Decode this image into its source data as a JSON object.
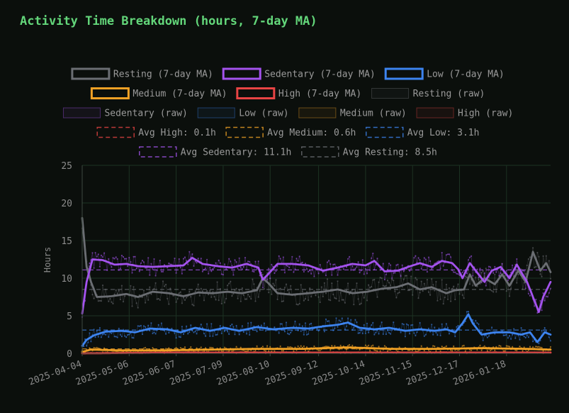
{
  "chart_data": {
    "type": "line",
    "title": "Activity Time Breakdown (hours, 7-day MA)",
    "xlabel": "",
    "ylabel": "Hours",
    "ylim": [
      0,
      25
    ],
    "yticks": [
      0,
      5,
      10,
      15,
      20,
      25
    ],
    "x_start": "2025-04-04",
    "x_end": "2026-02-17",
    "xticks": [
      "2025-04-04",
      "2025-05-06",
      "2025-06-07",
      "2025-07-09",
      "2025-08-10",
      "2025-09-12",
      "2025-10-14",
      "2025-11-15",
      "2025-12-17",
      "2026-01-18"
    ],
    "grid": true,
    "legend_position": "top-center",
    "series": [
      {
        "name": "Resting (7-day MA)",
        "color": "#6b6e73",
        "style": "solid",
        "points": [
          [
            "2025-04-04",
            18.0
          ],
          [
            "2025-04-07",
            11.5
          ],
          [
            "2025-04-10",
            9.5
          ],
          [
            "2025-04-14",
            7.5
          ],
          [
            "2025-04-24",
            7.6
          ],
          [
            "2025-05-04",
            7.9
          ],
          [
            "2025-05-12",
            7.5
          ],
          [
            "2025-05-22",
            8.2
          ],
          [
            "2025-06-02",
            8.0
          ],
          [
            "2025-06-12",
            7.6
          ],
          [
            "2025-06-22",
            8.1
          ],
          [
            "2025-07-02",
            8.0
          ],
          [
            "2025-07-12",
            8.2
          ],
          [
            "2025-07-22",
            8.0
          ],
          [
            "2025-08-01",
            8.4
          ],
          [
            "2025-08-05",
            10.0
          ],
          [
            "2025-08-09",
            9.3
          ],
          [
            "2025-08-15",
            8.0
          ],
          [
            "2025-08-25",
            7.8
          ],
          [
            "2025-09-05",
            8.0
          ],
          [
            "2025-09-15",
            8.2
          ],
          [
            "2025-09-25",
            8.5
          ],
          [
            "2025-10-05",
            8.0
          ],
          [
            "2025-10-15",
            8.2
          ],
          [
            "2025-10-25",
            8.6
          ],
          [
            "2025-11-04",
            8.8
          ],
          [
            "2025-11-12",
            9.3
          ],
          [
            "2025-11-20",
            8.5
          ],
          [
            "2025-11-28",
            8.8
          ],
          [
            "2025-12-08",
            8.0
          ],
          [
            "2025-12-14",
            8.4
          ],
          [
            "2025-12-20",
            8.5
          ],
          [
            "2025-12-24",
            10.5
          ],
          [
            "2025-12-28",
            9.0
          ],
          [
            "2026-01-03",
            10.0
          ],
          [
            "2026-01-10",
            9.2
          ],
          [
            "2026-01-15",
            10.5
          ],
          [
            "2026-01-20",
            9.0
          ],
          [
            "2026-01-26",
            11.0
          ],
          [
            "2026-01-31",
            9.5
          ],
          [
            "2026-02-05",
            13.5
          ],
          [
            "2026-02-10",
            11.0
          ],
          [
            "2026-02-14",
            12.0
          ],
          [
            "2026-02-17",
            10.8
          ]
        ]
      },
      {
        "name": "Sedentary (7-day MA)",
        "color": "#a453ee",
        "style": "solid",
        "points": [
          [
            "2025-04-04",
            5.3
          ],
          [
            "2025-04-07",
            9.5
          ],
          [
            "2025-04-11",
            12.5
          ],
          [
            "2025-04-18",
            12.4
          ],
          [
            "2025-04-26",
            11.8
          ],
          [
            "2025-05-04",
            11.9
          ],
          [
            "2025-05-12",
            11.6
          ],
          [
            "2025-05-22",
            11.5
          ],
          [
            "2025-06-02",
            11.6
          ],
          [
            "2025-06-12",
            11.7
          ],
          [
            "2025-06-18",
            12.7
          ],
          [
            "2025-06-25",
            11.9
          ],
          [
            "2025-07-05",
            11.6
          ],
          [
            "2025-07-15",
            11.4
          ],
          [
            "2025-07-25",
            11.9
          ],
          [
            "2025-08-02",
            11.4
          ],
          [
            "2025-08-05",
            9.8
          ],
          [
            "2025-08-09",
            10.6
          ],
          [
            "2025-08-15",
            11.9
          ],
          [
            "2025-08-25",
            11.9
          ],
          [
            "2025-09-05",
            11.7
          ],
          [
            "2025-09-15",
            11.0
          ],
          [
            "2025-09-25",
            11.4
          ],
          [
            "2025-10-05",
            11.9
          ],
          [
            "2025-10-14",
            11.7
          ],
          [
            "2025-10-20",
            12.3
          ],
          [
            "2025-10-27",
            10.9
          ],
          [
            "2025-11-05",
            11.0
          ],
          [
            "2025-11-12",
            11.5
          ],
          [
            "2025-11-20",
            12.0
          ],
          [
            "2025-11-28",
            11.5
          ],
          [
            "2025-12-05",
            12.3
          ],
          [
            "2025-12-12",
            12.0
          ],
          [
            "2025-12-16",
            11.2
          ],
          [
            "2025-12-19",
            10.0
          ],
          [
            "2025-12-24",
            12.0
          ],
          [
            "2025-12-28",
            11.0
          ],
          [
            "2026-01-03",
            9.5
          ],
          [
            "2026-01-08",
            11.0
          ],
          [
            "2026-01-14",
            11.5
          ],
          [
            "2026-01-20",
            10.0
          ],
          [
            "2026-01-25",
            11.8
          ],
          [
            "2026-02-01",
            9.5
          ],
          [
            "2026-02-05",
            7.5
          ],
          [
            "2026-02-09",
            5.5
          ],
          [
            "2026-02-12",
            7.5
          ],
          [
            "2026-02-17",
            9.5
          ]
        ]
      },
      {
        "name": "Low (7-day MA)",
        "color": "#3d84f0",
        "style": "solid",
        "points": [
          [
            "2025-04-04",
            1.0
          ],
          [
            "2025-04-07",
            1.8
          ],
          [
            "2025-04-12",
            2.4
          ],
          [
            "2025-04-20",
            2.9
          ],
          [
            "2025-05-01",
            3.0
          ],
          [
            "2025-05-10",
            2.8
          ],
          [
            "2025-05-20",
            3.3
          ],
          [
            "2025-06-01",
            3.2
          ],
          [
            "2025-06-10",
            2.8
          ],
          [
            "2025-06-20",
            3.4
          ],
          [
            "2025-06-30",
            3.0
          ],
          [
            "2025-07-10",
            3.4
          ],
          [
            "2025-07-20",
            3.0
          ],
          [
            "2025-08-01",
            3.5
          ],
          [
            "2025-08-12",
            3.2
          ],
          [
            "2025-08-25",
            3.4
          ],
          [
            "2025-09-05",
            3.3
          ],
          [
            "2025-09-15",
            3.6
          ],
          [
            "2025-09-25",
            3.8
          ],
          [
            "2025-10-02",
            4.1
          ],
          [
            "2025-10-10",
            3.4
          ],
          [
            "2025-10-20",
            3.2
          ],
          [
            "2025-10-30",
            3.4
          ],
          [
            "2025-11-10",
            3.0
          ],
          [
            "2025-11-20",
            3.2
          ],
          [
            "2025-11-30",
            3.0
          ],
          [
            "2025-12-08",
            3.2
          ],
          [
            "2025-12-14",
            2.8
          ],
          [
            "2025-12-19",
            4.0
          ],
          [
            "2025-12-23",
            5.2
          ],
          [
            "2025-12-26",
            4.0
          ],
          [
            "2026-01-01",
            2.5
          ],
          [
            "2026-01-10",
            2.8
          ],
          [
            "2026-01-20",
            2.8
          ],
          [
            "2026-01-28",
            2.5
          ],
          [
            "2026-02-03",
            2.8
          ],
          [
            "2026-02-08",
            1.5
          ],
          [
            "2026-02-13",
            2.8
          ],
          [
            "2026-02-17",
            2.5
          ]
        ]
      },
      {
        "name": "Medium (7-day MA)",
        "color": "#f0a125",
        "style": "solid",
        "points": [
          [
            "2025-04-04",
            0.2
          ],
          [
            "2025-04-10",
            0.5
          ],
          [
            "2025-05-01",
            0.4
          ],
          [
            "2025-06-01",
            0.4
          ],
          [
            "2025-07-01",
            0.5
          ],
          [
            "2025-08-01",
            0.6
          ],
          [
            "2025-09-01",
            0.6
          ],
          [
            "2025-10-01",
            0.8
          ],
          [
            "2025-11-01",
            0.6
          ],
          [
            "2025-12-01",
            0.6
          ],
          [
            "2026-01-01",
            0.7
          ],
          [
            "2026-02-01",
            0.6
          ],
          [
            "2026-02-17",
            0.5
          ]
        ]
      },
      {
        "name": "High (7-day MA)",
        "color": "#e84444",
        "style": "solid",
        "points": [
          [
            "2025-04-04",
            0.0
          ],
          [
            "2025-06-01",
            0.1
          ],
          [
            "2025-09-01",
            0.1
          ],
          [
            "2025-12-01",
            0.1
          ],
          [
            "2026-02-17",
            0.1
          ]
        ]
      },
      {
        "name": "Resting (raw)",
        "color": "#6b6e73",
        "style": "raw",
        "base": 8.5,
        "spread": 1.6
      },
      {
        "name": "Sedentary (raw)",
        "color": "#a453ee",
        "style": "raw",
        "base": 11.4,
        "spread": 1.2
      },
      {
        "name": "Low (raw)",
        "color": "#3d84f0",
        "style": "raw",
        "base": 3.1,
        "spread": 0.9
      },
      {
        "name": "Medium (raw)",
        "color": "#f0a125",
        "style": "raw",
        "base": 0.6,
        "spread": 0.4
      },
      {
        "name": "High (raw)",
        "color": "#e84444",
        "style": "raw",
        "base": 0.1,
        "spread": 0.1
      },
      {
        "name": "Avg High: 0.1h",
        "color": "#e84444",
        "style": "avg",
        "value": 0.1
      },
      {
        "name": "Avg Medium: 0.6h",
        "color": "#f0a125",
        "style": "avg",
        "value": 0.6
      },
      {
        "name": "Avg Low: 3.1h",
        "color": "#3d84f0",
        "style": "avg",
        "value": 3.1
      },
      {
        "name": "Avg Sedentary: 11.1h",
        "color": "#a453ee",
        "style": "avg",
        "value": 11.1
      },
      {
        "name": "Avg Resting: 8.5h",
        "color": "#6b6e73",
        "style": "avg",
        "value": 8.5
      }
    ]
  }
}
